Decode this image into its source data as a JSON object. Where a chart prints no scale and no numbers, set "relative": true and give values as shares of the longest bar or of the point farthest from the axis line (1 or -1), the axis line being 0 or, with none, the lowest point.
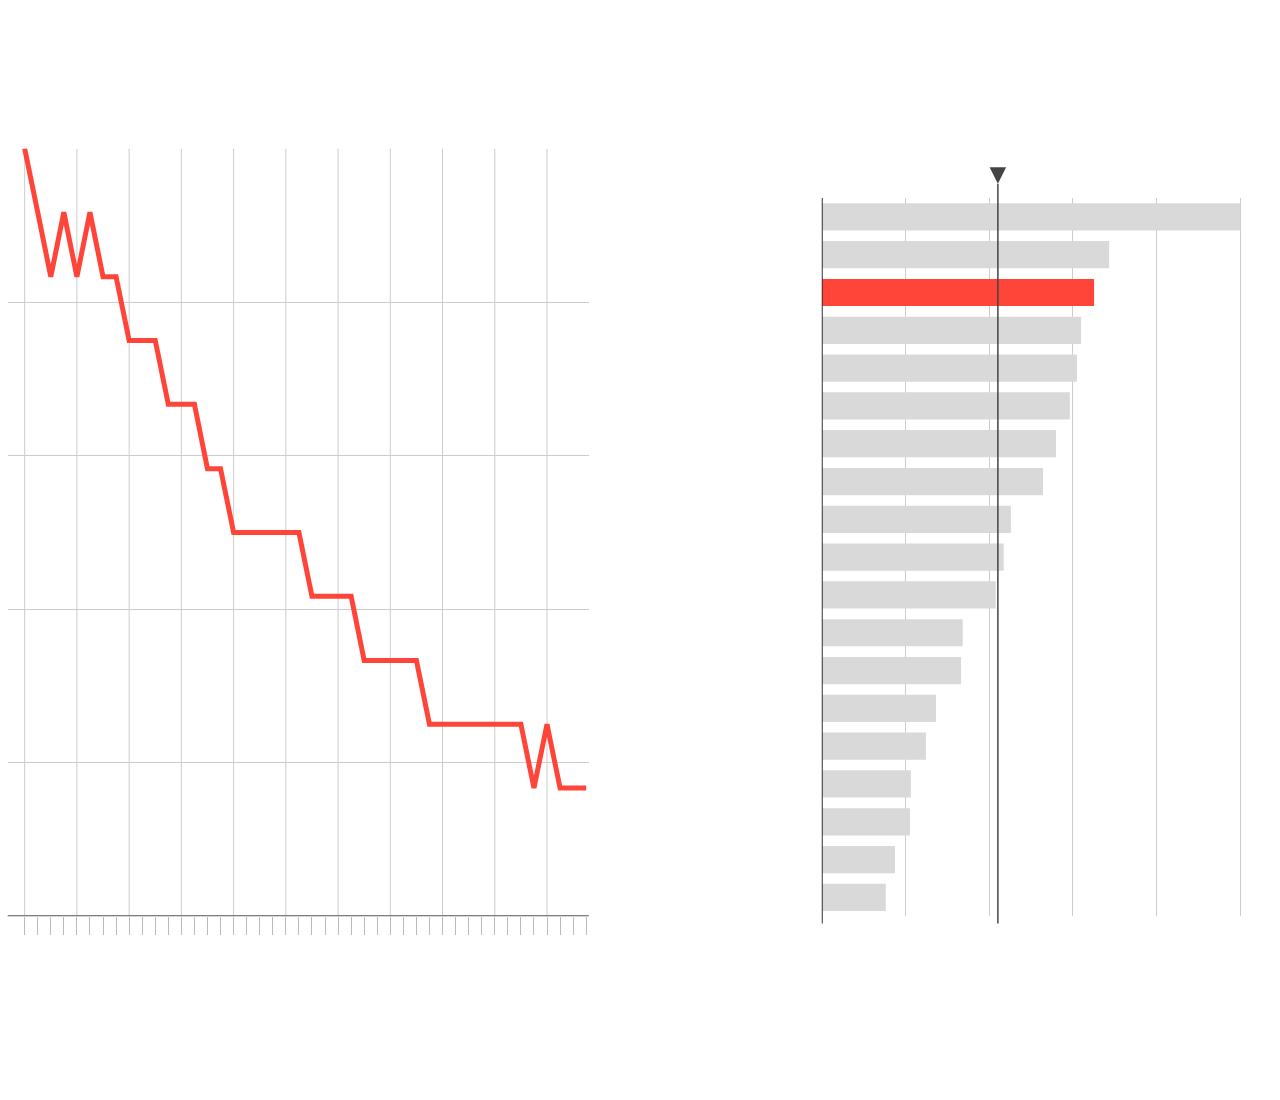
{
  "chart_data": [
    {
      "type": "line",
      "relative": true,
      "grid": true,
      "color": "#ff453a",
      "categories": [
        null,
        null,
        null,
        null,
        null,
        null,
        null,
        null,
        null,
        null,
        null,
        null,
        null,
        null,
        null,
        null,
        null,
        null,
        null,
        null,
        null,
        null,
        null,
        null,
        null,
        null,
        null,
        null,
        null,
        null,
        null,
        null,
        null,
        null,
        null,
        null,
        null,
        null,
        null,
        null,
        null,
        null,
        null,
        null
      ],
      "values": [
        1,
        0.917,
        0.833,
        0.917,
        0.833,
        0.917,
        0.833,
        0.833,
        0.75,
        0.75,
        0.75,
        0.667,
        0.667,
        0.667,
        0.583,
        0.583,
        0.5,
        0.5,
        0.5,
        0.5,
        0.5,
        0.5,
        0.417,
        0.417,
        0.417,
        0.417,
        0.333,
        0.333,
        0.333,
        0.333,
        0.333,
        0.25,
        0.25,
        0.25,
        0.25,
        0.25,
        0.25,
        0.25,
        0.25,
        0.167,
        0.25,
        0.167,
        0.167,
        0.167
      ]
    },
    {
      "type": "bar",
      "orientation": "horizontal",
      "relative": true,
      "grid": "x",
      "categories": [
        null,
        null,
        null,
        null,
        null,
        null,
        null,
        null,
        null,
        null,
        null,
        null,
        null,
        null,
        null,
        null,
        null,
        null,
        null
      ],
      "values": [
        1,
        0.687,
        0.651,
        0.62,
        0.61,
        0.593,
        0.56,
        0.529,
        0.452,
        0.435,
        0.416,
        0.337,
        0.333,
        0.273,
        0.249,
        0.213,
        0.211,
        0.175,
        0.153
      ],
      "colors": [
        "#d9d9d9",
        "#d9d9d9",
        "#ff453a",
        "#d9d9d9",
        "#d9d9d9",
        "#d9d9d9",
        "#d9d9d9",
        "#d9d9d9",
        "#d9d9d9",
        "#d9d9d9",
        "#d9d9d9",
        "#d9d9d9",
        "#d9d9d9",
        "#d9d9d9",
        "#d9d9d9",
        "#d9d9d9",
        "#d9d9d9",
        "#d9d9d9",
        "#d9d9d9"
      ],
      "ref_lines": [
        {
          "axis": "x",
          "value": 0.421,
          "color": "#444444"
        }
      ]
    }
  ]
}
